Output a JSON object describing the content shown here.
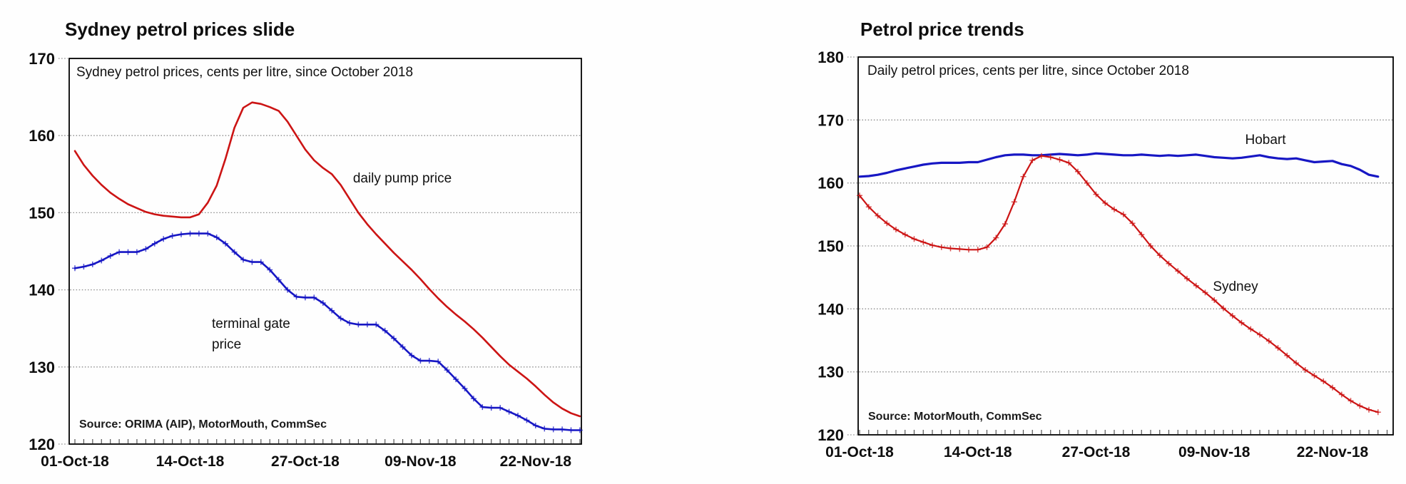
{
  "page": {
    "background": "#fefefe",
    "accent_red": "#cc1414",
    "accent_blue": "#1717c4"
  },
  "chart_data": [
    {
      "id": "sydney-petrol-prices-slide",
      "type": "line",
      "title": "Sydney petrol prices slide",
      "subtitle": "Sydney petrol prices, cents per litre, since October 2018",
      "source": "Source: ORIMA (AIP), MotorMouth, CommSec",
      "ylabel": "cents per litre",
      "ylim": [
        120,
        170
      ],
      "yticks": [
        120,
        130,
        140,
        150,
        160,
        170
      ],
      "grid": "horizontal-dotted",
      "legend_position": "inline-annotations",
      "x_unit": "day",
      "x_ticks": [
        {
          "day": 0,
          "label": "01-Oct-18"
        },
        {
          "day": 13,
          "label": "14-Oct-18"
        },
        {
          "day": 26,
          "label": "27-Oct-18"
        },
        {
          "day": 39,
          "label": "09-Nov-18"
        },
        {
          "day": 52,
          "label": "22-Nov-18"
        }
      ],
      "series": [
        {
          "name": "daily pump price",
          "color": "#cc1414",
          "markers": false,
          "line_width": 2.6,
          "values": [
            158.0,
            156.2,
            154.8,
            153.6,
            152.6,
            151.8,
            151.1,
            150.6,
            150.1,
            149.8,
            149.6,
            149.5,
            149.4,
            149.4,
            149.8,
            151.3,
            153.5,
            157.0,
            161.0,
            163.6,
            164.3,
            164.1,
            163.7,
            163.2,
            161.8,
            160.0,
            158.2,
            156.8,
            155.8,
            155.0,
            153.6,
            151.8,
            150.0,
            148.5,
            147.2,
            146.0,
            144.8,
            143.7,
            142.6,
            141.4,
            140.1,
            138.9,
            137.8,
            136.8,
            135.9,
            134.9,
            133.8,
            132.6,
            131.4,
            130.3,
            129.4,
            128.5,
            127.5,
            126.4,
            125.4,
            124.6,
            124.0,
            123.6
          ]
        },
        {
          "name": "terminal gate price",
          "color": "#1717c4",
          "markers": true,
          "line_width": 2.6,
          "values": [
            142.8,
            143.0,
            143.3,
            143.8,
            144.4,
            144.9,
            144.9,
            144.9,
            145.3,
            146.0,
            146.6,
            147.0,
            147.2,
            147.3,
            147.3,
            147.3,
            146.8,
            146.0,
            144.9,
            143.9,
            143.6,
            143.6,
            142.6,
            141.3,
            140.0,
            139.1,
            139.0,
            139.0,
            138.3,
            137.3,
            136.3,
            135.7,
            135.5,
            135.5,
            135.5,
            134.7,
            133.7,
            132.6,
            131.5,
            130.8,
            130.8,
            130.7,
            129.6,
            128.4,
            127.2,
            125.9,
            124.8,
            124.7,
            124.7,
            124.2,
            123.7,
            123.1,
            122.4,
            122.0,
            121.9,
            121.9,
            121.8,
            121.8
          ]
        }
      ],
      "annotations": [
        {
          "text": "daily pump price"
        },
        {
          "text": "terminal gate"
        },
        {
          "text": "price"
        }
      ]
    },
    {
      "id": "petrol-price-trends",
      "type": "line",
      "title": "Petrol price trends",
      "subtitle": "Daily petrol prices, cents per litre, since October 2018",
      "source": "Source: MotorMouth, CommSec",
      "ylabel": "cents per litre",
      "ylim": [
        120,
        180
      ],
      "yticks": [
        120,
        130,
        140,
        150,
        160,
        170,
        180
      ],
      "grid": "horizontal-dotted",
      "legend_position": "inline-annotations",
      "x_unit": "day",
      "x_ticks": [
        {
          "day": 0,
          "label": "01-Oct-18"
        },
        {
          "day": 13,
          "label": "14-Oct-18"
        },
        {
          "day": 26,
          "label": "27-Oct-18"
        },
        {
          "day": 39,
          "label": "09-Nov-18"
        },
        {
          "day": 52,
          "label": "22-Nov-18"
        }
      ],
      "series": [
        {
          "name": "Hobart",
          "color": "#1717c4",
          "markers": false,
          "line_width": 3.2,
          "values": [
            161.0,
            161.1,
            161.3,
            161.6,
            162.0,
            162.3,
            162.6,
            162.9,
            163.1,
            163.2,
            163.2,
            163.2,
            163.3,
            163.3,
            163.7,
            164.1,
            164.4,
            164.5,
            164.5,
            164.4,
            164.4,
            164.5,
            164.6,
            164.5,
            164.4,
            164.5,
            164.7,
            164.6,
            164.5,
            164.4,
            164.4,
            164.5,
            164.4,
            164.3,
            164.4,
            164.3,
            164.4,
            164.5,
            164.3,
            164.1,
            164.0,
            163.9,
            164.0,
            164.2,
            164.4,
            164.1,
            163.9,
            163.8,
            163.9,
            163.6,
            163.3,
            163.4,
            163.5,
            163.0,
            162.7,
            162.1,
            161.3,
            161.0
          ]
        },
        {
          "name": "Sydney",
          "color": "#cc1414",
          "markers": true,
          "line_width": 2.2,
          "values": [
            158.0,
            156.2,
            154.8,
            153.6,
            152.6,
            151.8,
            151.1,
            150.6,
            150.1,
            149.8,
            149.6,
            149.5,
            149.4,
            149.4,
            149.8,
            151.3,
            153.5,
            157.0,
            161.0,
            163.6,
            164.3,
            164.1,
            163.7,
            163.2,
            161.8,
            160.0,
            158.2,
            156.8,
            155.8,
            155.0,
            153.6,
            151.8,
            150.0,
            148.5,
            147.2,
            146.0,
            144.8,
            143.7,
            142.6,
            141.4,
            140.1,
            138.9,
            137.8,
            136.8,
            135.9,
            134.9,
            133.8,
            132.6,
            131.4,
            130.3,
            129.4,
            128.5,
            127.5,
            126.4,
            125.4,
            124.6,
            124.0,
            123.6
          ]
        }
      ],
      "annotations": [
        {
          "text": "Hobart"
        },
        {
          "text": "Sydney"
        }
      ]
    }
  ]
}
